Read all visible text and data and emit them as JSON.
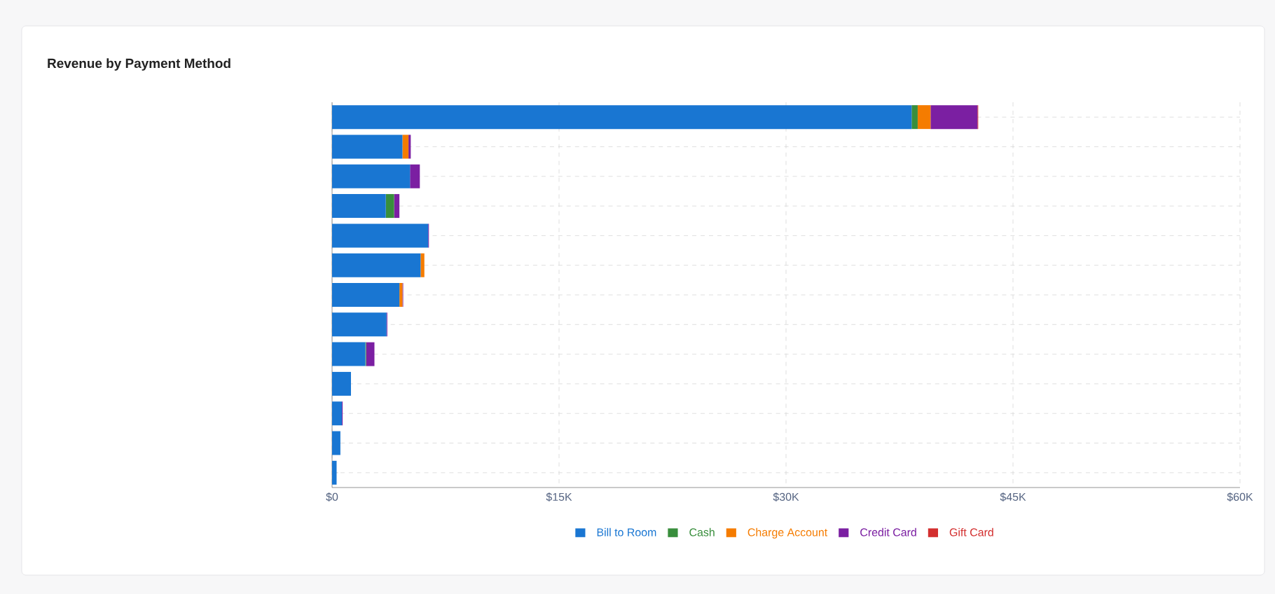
{
  "chart_data": {
    "type": "bar",
    "orientation": "horizontal",
    "stacked": true,
    "title": "Revenue by Payment Method",
    "categories": [
      null,
      null,
      null,
      null,
      null,
      null,
      null,
      null,
      null,
      null,
      null,
      null,
      null
    ],
    "series": [
      {
        "name": "Bill to Room",
        "color": "#1976d2",
        "values": [
          38300,
          4650,
          5150,
          3550,
          6350,
          5850,
          4450,
          3600,
          2200,
          1250,
          650,
          550,
          300
        ]
      },
      {
        "name": "Cash",
        "color": "#388e3c",
        "values": [
          400,
          0,
          0,
          550,
          0,
          0,
          0,
          0,
          50,
          0,
          0,
          0,
          0
        ]
      },
      {
        "name": "Charge Account",
        "color": "#f57c00",
        "values": [
          850,
          400,
          0,
          0,
          0,
          250,
          200,
          0,
          0,
          0,
          0,
          0,
          0
        ]
      },
      {
        "name": "Credit Card",
        "color": "#7b1fa2",
        "values": [
          3100,
          150,
          650,
          350,
          50,
          0,
          50,
          50,
          550,
          0,
          50,
          0,
          0
        ]
      },
      {
        "name": "Gift Card",
        "color": "#d32f2f",
        "values": [
          50,
          0,
          0,
          0,
          0,
          0,
          0,
          0,
          0,
          0,
          0,
          0,
          0
        ]
      }
    ],
    "xlim": [
      0,
      60000
    ],
    "xticks": [
      {
        "value": 0,
        "label": "$0"
      },
      {
        "value": 15000,
        "label": "$15K"
      },
      {
        "value": 30000,
        "label": "$30K"
      },
      {
        "value": 45000,
        "label": "$45K"
      },
      {
        "value": 60000,
        "label": "$60K"
      }
    ],
    "grid": true,
    "legend": "bottom"
  }
}
